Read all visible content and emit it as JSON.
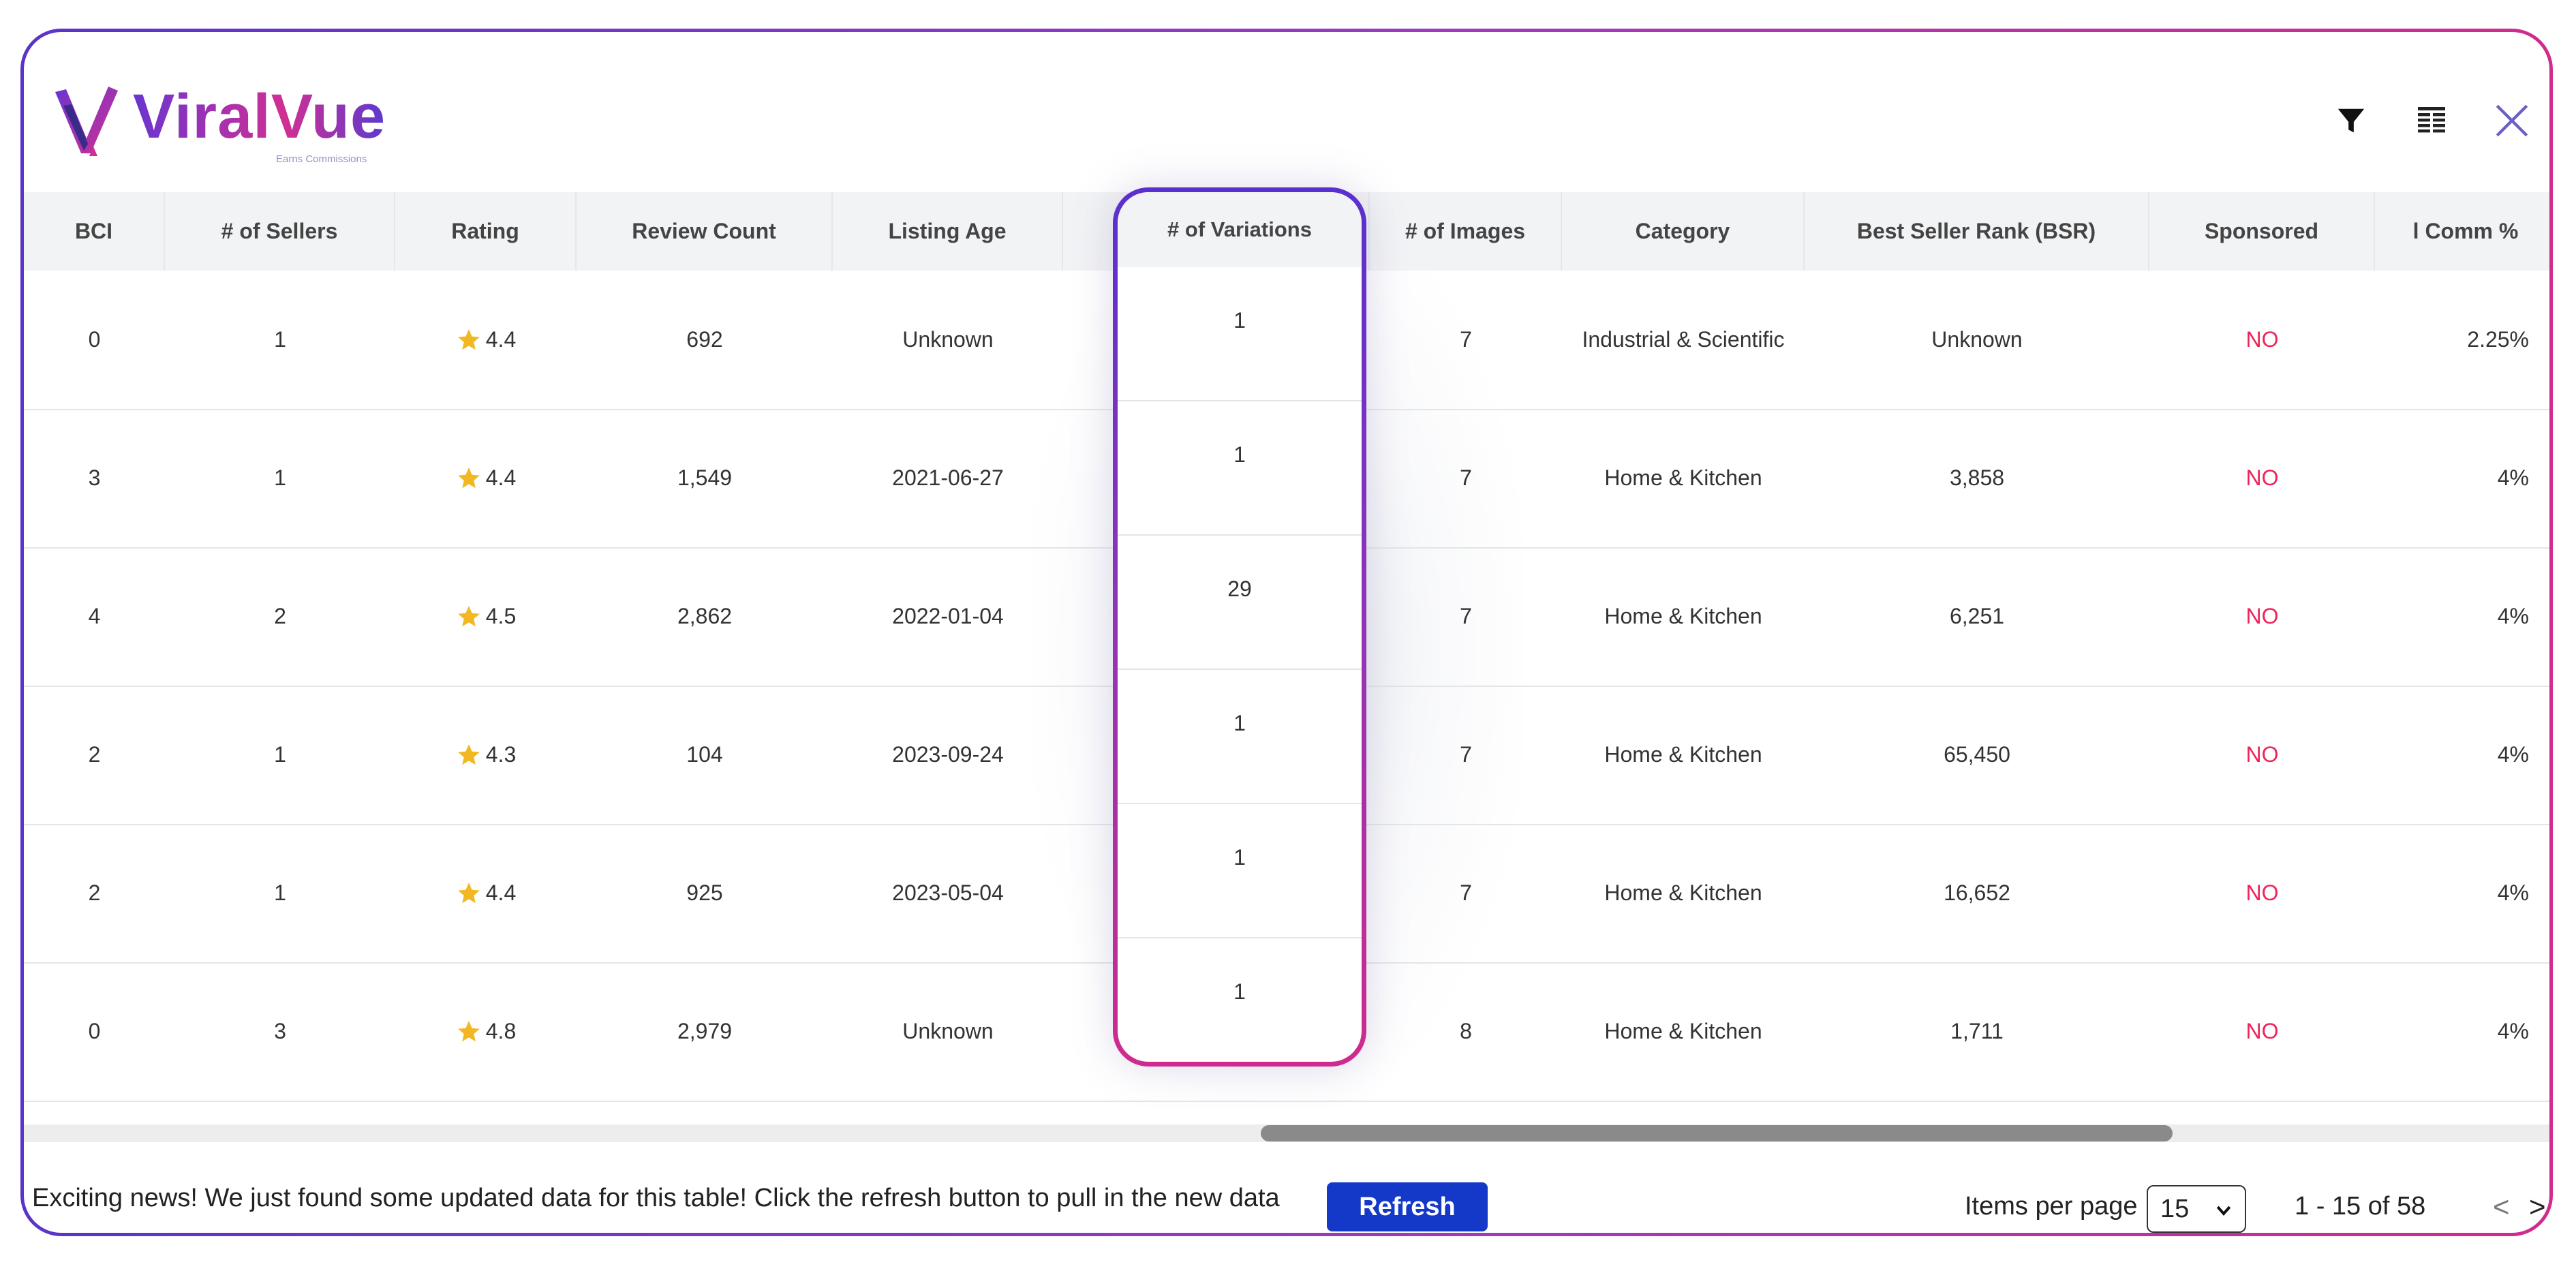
{
  "brand": {
    "name": "ViralVue",
    "tagline": "Earns Commissions"
  },
  "toolbar": {
    "icons": [
      "filter-icon",
      "columns-icon",
      "close-icon"
    ]
  },
  "table": {
    "columns": [
      "BCI",
      "# of Sellers",
      "Rating",
      "Review Count",
      "Listing Age",
      "# of Variations",
      "# of Images",
      "Category",
      "Best Seller Rank (BSR)",
      "Sponsored",
      "l Comm %"
    ],
    "rows": [
      {
        "bci": "0",
        "sellers": "1",
        "rating": "4.4",
        "reviews": "692",
        "age": "Unknown",
        "variations": "1",
        "images": "7",
        "category": "Industrial & Scientific",
        "bsr": "Unknown",
        "sponsored": "NO",
        "comm": "2.25%"
      },
      {
        "bci": "3",
        "sellers": "1",
        "rating": "4.4",
        "reviews": "1,549",
        "age": "2021-06-27",
        "variations": "1",
        "images": "7",
        "category": "Home & Kitchen",
        "bsr": "3,858",
        "sponsored": "NO",
        "comm": "4%"
      },
      {
        "bci": "4",
        "sellers": "2",
        "rating": "4.5",
        "reviews": "2,862",
        "age": "2022-01-04",
        "variations": "29",
        "images": "7",
        "category": "Home & Kitchen",
        "bsr": "6,251",
        "sponsored": "NO",
        "comm": "4%"
      },
      {
        "bci": "2",
        "sellers": "1",
        "rating": "4.3",
        "reviews": "104",
        "age": "2023-09-24",
        "variations": "1",
        "images": "7",
        "category": "Home & Kitchen",
        "bsr": "65,450",
        "sponsored": "NO",
        "comm": "4%"
      },
      {
        "bci": "2",
        "sellers": "1",
        "rating": "4.4",
        "reviews": "925",
        "age": "2023-05-04",
        "variations": "1",
        "images": "7",
        "category": "Home & Kitchen",
        "bsr": "16,652",
        "sponsored": "NO",
        "comm": "4%"
      },
      {
        "bci": "0",
        "sellers": "3",
        "rating": "4.8",
        "reviews": "2,979",
        "age": "Unknown",
        "variations": "1",
        "images": "8",
        "category": "Home & Kitchen",
        "bsr": "1,711",
        "sponsored": "NO",
        "comm": "4%"
      }
    ]
  },
  "footer": {
    "message": "Exciting news! We just found some updated data for this table! Click the refresh button to pull in the new data",
    "refresh_label": "Refresh",
    "items_per_page_label": "Items per page",
    "items_per_page_value": "15",
    "range_label": "1 - 15 of 58",
    "prev_label": "<",
    "next_label": ">"
  },
  "colors": {
    "accent_purple": "#5a34c9",
    "accent_pink": "#d02b8d",
    "sponsored_no": "#f0245a",
    "refresh_button": "#1439c9",
    "star": "#f2b824"
  }
}
